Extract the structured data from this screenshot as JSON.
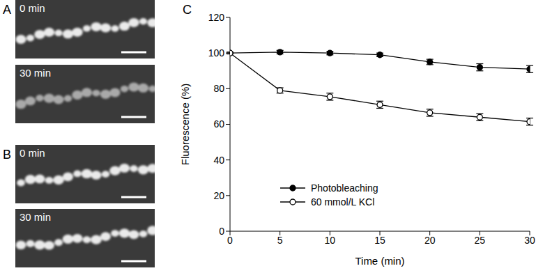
{
  "panels": [
    {
      "label": "A",
      "images": [
        "0 min",
        "30 min"
      ]
    },
    {
      "label": "B",
      "images": [
        "0 min",
        "30 min"
      ]
    }
  ],
  "chart_data": {
    "type": "line",
    "title": "C",
    "x_label": "Time (min)",
    "y_label": "Fluorescence (%)",
    "x": [
      0,
      5,
      10,
      15,
      20,
      25,
      30
    ],
    "xlim": [
      0,
      30
    ],
    "xticks": [
      0,
      5,
      10,
      15,
      20,
      25,
      30
    ],
    "ylim": [
      0,
      120
    ],
    "yticks": [
      0,
      20,
      40,
      60,
      80,
      100,
      120
    ],
    "grid": false,
    "legend": "lower left",
    "series": [
      {
        "name": "Photobleaching",
        "color": "#000000",
        "marker": "filled_circle",
        "values": [
          100,
          100.5,
          100,
          99,
          95,
          92,
          91
        ],
        "error": [
          0.5,
          1,
          1,
          1,
          1.5,
          2,
          2
        ]
      },
      {
        "name": "60 mmol/L KCl",
        "color": "#000000",
        "marker": "open_circle",
        "values": [
          100,
          79,
          75.5,
          71,
          66.5,
          64,
          61.5
        ],
        "error": [
          0.5,
          1.5,
          2,
          2,
          2,
          2,
          2
        ]
      }
    ]
  }
}
